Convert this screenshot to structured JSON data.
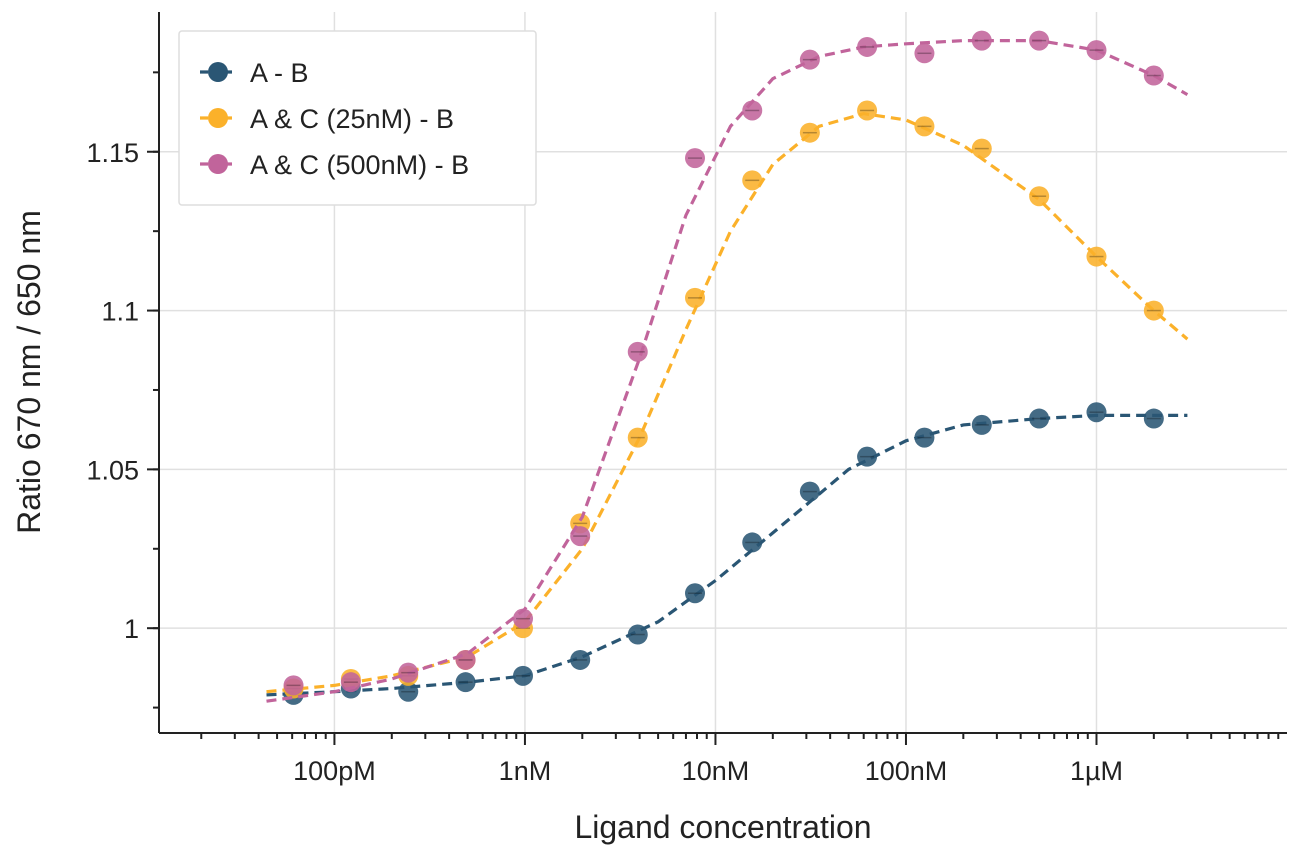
{
  "chart_data": {
    "type": "scatter",
    "title": "",
    "xlabel": "Ligand concentration",
    "ylabel": "Ratio 670 nm / 650 nm",
    "x_scale": "log",
    "x_unit": "M",
    "xlim": [
      1.2e-11,
      1e-05
    ],
    "ylim": [
      0.967,
      1.194
    ],
    "grid": true,
    "legend_position": "top-left",
    "xticks": [
      {
        "value": 1e-10,
        "label": "100pM"
      },
      {
        "value": 1e-09,
        "label": "1nM"
      },
      {
        "value": 1e-08,
        "label": "10nM"
      },
      {
        "value": 1e-07,
        "label": "100nM"
      },
      {
        "value": 1e-06,
        "label": "1µM"
      }
    ],
    "yticks": [
      {
        "value": 1.0,
        "label": "1"
      },
      {
        "value": 1.05,
        "label": "1.05"
      },
      {
        "value": 1.1,
        "label": "1.1"
      },
      {
        "value": 1.15,
        "label": "1.15"
      }
    ],
    "x": [
      6.1e-11,
      1.22e-10,
      2.44e-10,
      4.88e-10,
      9.77e-10,
      1.95e-09,
      3.91e-09,
      7.81e-09,
      1.56e-08,
      3.13e-08,
      6.25e-08,
      1.25e-07,
      2.5e-07,
      5e-07,
      1e-06,
      2e-06
    ],
    "series": [
      {
        "name": "A - B",
        "color": "#2a5674",
        "values": [
          0.979,
          0.981,
          0.98,
          0.983,
          0.985,
          0.99,
          0.998,
          1.011,
          1.027,
          1.043,
          1.054,
          1.06,
          1.064,
          1.066,
          1.068,
          1.066
        ],
        "fit": {
          "x": [
            4.4e-11,
            1e-10,
            2e-10,
            5e-10,
            1e-09,
            2e-09,
            5e-09,
            1e-08,
            2e-08,
            5e-08,
            1e-07,
            2e-07,
            5e-07,
            1e-06,
            3e-06
          ],
          "y": [
            0.979,
            0.98,
            0.981,
            0.983,
            0.985,
            0.991,
            1.002,
            1.015,
            1.03,
            1.05,
            1.059,
            1.064,
            1.066,
            1.067,
            1.067
          ]
        }
      },
      {
        "name": "A & C (25nM) - B",
        "color": "#fbb12a",
        "values": [
          0.981,
          0.984,
          0.985,
          0.99,
          1.0,
          1.033,
          1.06,
          1.104,
          1.141,
          1.156,
          1.163,
          1.158,
          1.151,
          1.136,
          1.117,
          1.1
        ],
        "fit": {
          "x": [
            4.4e-11,
            1e-10,
            2e-10,
            5e-10,
            1e-09,
            2e-09,
            4e-09,
            7e-09,
            1.2e-08,
            2e-08,
            3.5e-08,
            6e-08,
            1e-07,
            2e-07,
            5e-07,
            1e-06,
            2e-06,
            3e-06
          ],
          "y": [
            0.98,
            0.982,
            0.985,
            0.991,
            1.002,
            1.025,
            1.06,
            1.094,
            1.125,
            1.146,
            1.158,
            1.162,
            1.16,
            1.152,
            1.135,
            1.117,
            1.1,
            1.091
          ]
        }
      },
      {
        "name": "A & C (500nM) - B",
        "color": "#c1649b",
        "values": [
          0.982,
          0.983,
          0.986,
          0.99,
          1.003,
          1.029,
          1.087,
          1.148,
          1.163,
          1.179,
          1.183,
          1.181,
          1.185,
          1.185,
          1.182,
          1.174
        ],
        "fit": {
          "x": [
            4.4e-11,
            1e-10,
            2e-10,
            5e-10,
            1e-09,
            2e-09,
            4e-09,
            7e-09,
            1.2e-08,
            2e-08,
            3.5e-08,
            6e-08,
            1e-07,
            2e-07,
            5e-07,
            1e-06,
            2e-06,
            3e-06
          ],
          "y": [
            0.977,
            0.98,
            0.984,
            0.992,
            1.006,
            1.035,
            1.085,
            1.13,
            1.158,
            1.173,
            1.18,
            1.183,
            1.184,
            1.185,
            1.185,
            1.182,
            1.174,
            1.168
          ]
        }
      }
    ]
  }
}
